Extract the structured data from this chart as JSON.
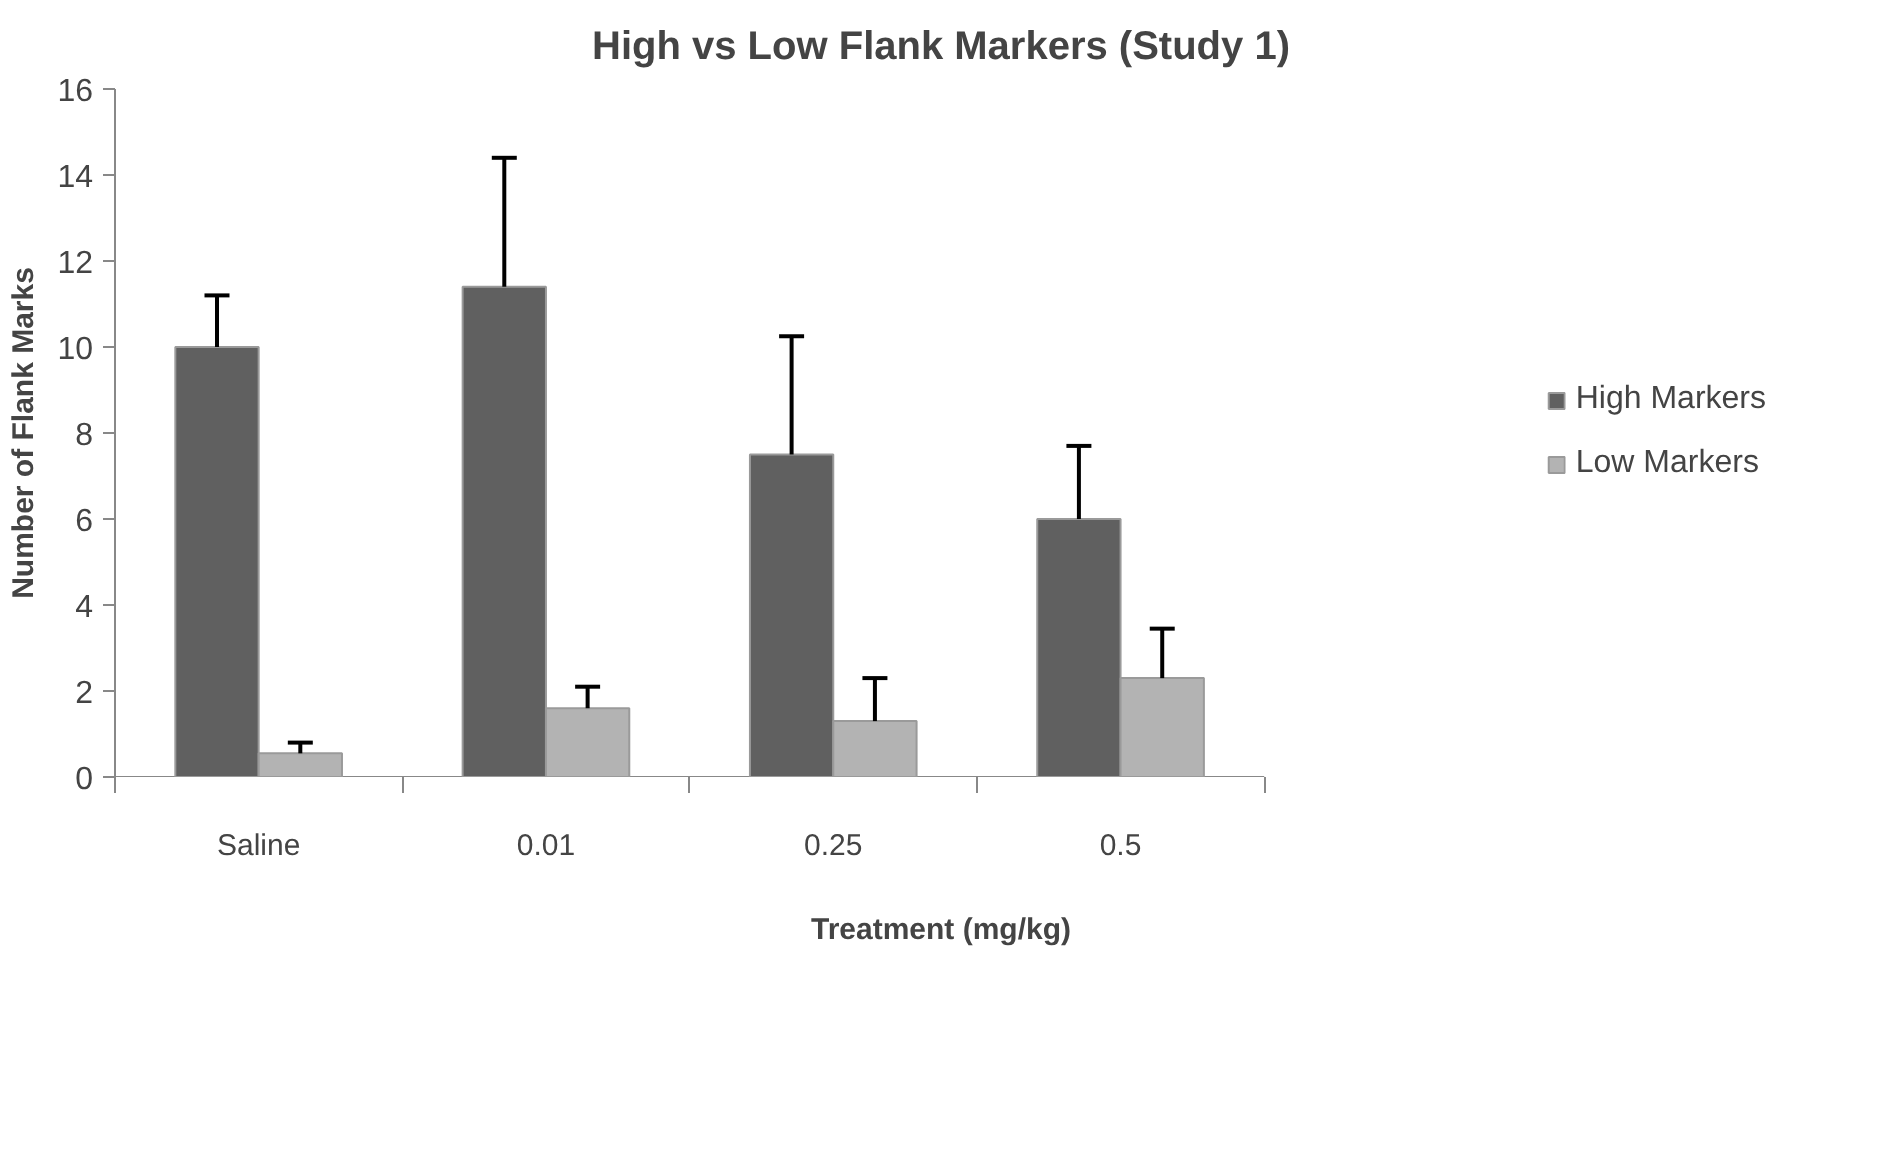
{
  "chart_data": {
    "type": "bar",
    "title": "High vs Low Flank Markers (Study 1)",
    "xlabel": "Treatment (mg/kg)",
    "ylabel": "Number of Flank Marks",
    "categories": [
      "Saline",
      "0.01",
      "0.25",
      "0.5"
    ],
    "series": [
      {
        "name": "High Markers",
        "color": "#606060",
        "values": [
          10.0,
          11.4,
          7.5,
          6.0
        ],
        "errors": [
          [
            10.0,
            11.2
          ],
          [
            11.4,
            14.4
          ],
          [
            7.5,
            10.25
          ],
          [
            6.0,
            7.7
          ]
        ]
      },
      {
        "name": "Low Markers",
        "color": "#b3b3b3",
        "values": [
          0.55,
          1.6,
          1.3,
          2.3
        ],
        "errors": [
          [
            0.55,
            0.8
          ],
          [
            1.6,
            2.1
          ],
          [
            1.3,
            2.3
          ],
          [
            2.3,
            3.45
          ]
        ]
      }
    ],
    "ylim": [
      0,
      16
    ],
    "yticks": [
      0,
      2,
      4,
      6,
      8,
      10,
      12,
      14,
      16
    ],
    "grid": false,
    "legend": "right"
  }
}
